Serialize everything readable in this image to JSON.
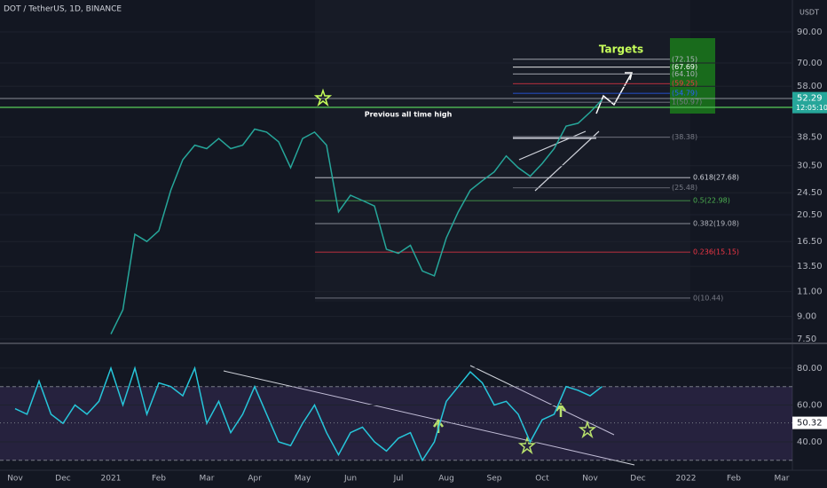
{
  "chart_data": [
    {
      "type": "line",
      "title": "DOT / TetherUS, 1D, BINANCE",
      "currency": "USDT",
      "categories": [
        "Nov",
        null,
        null,
        null,
        "Dec",
        null,
        null,
        null,
        "2021",
        null,
        null,
        null,
        "Feb",
        null,
        null,
        null,
        "Mar",
        null,
        null,
        null,
        "Apr",
        null,
        null,
        null,
        "May",
        null,
        null,
        null,
        "Jun",
        null,
        null,
        null,
        "Jul",
        null,
        null,
        null,
        "Aug",
        null,
        null,
        null,
        "Sep",
        null,
        null,
        null,
        "Oct",
        null,
        null,
        null,
        "Nov",
        null,
        null,
        null,
        "Dec",
        null,
        null,
        null,
        "2022",
        null,
        null,
        null,
        "Feb",
        null,
        null,
        null,
        "Mar",
        null,
        null,
        null
      ],
      "series": [
        {
          "color": "#26a69a",
          "values": [
            null,
            null,
            null,
            null,
            null,
            null,
            null,
            null,
            7.8,
            9.5,
            17.5,
            16.5,
            18,
            25,
            32,
            36,
            35,
            38,
            35,
            36,
            41,
            40,
            37,
            30,
            38,
            40,
            36,
            21,
            24,
            23,
            22,
            15.5,
            15,
            16,
            13,
            12.5,
            17,
            21,
            25,
            27,
            29,
            33,
            30,
            28,
            31,
            35,
            42,
            43,
            47,
            52,
            null,
            null,
            null,
            null,
            null,
            null,
            null,
            null,
            null,
            null,
            null,
            null,
            null,
            null,
            null,
            null,
            null,
            null
          ]
        }
      ],
      "log_scale": true,
      "ylim": [
        7.34,
        116.6
      ],
      "yticks": [
        {
          "value": 7.5,
          "label": "7.50"
        },
        {
          "value": 9,
          "label": "9.00"
        },
        {
          "value": 11,
          "label": "11.00"
        },
        {
          "value": 13.5,
          "label": "13.50"
        },
        {
          "value": 16.5,
          "label": "16.50"
        },
        {
          "value": 20.5,
          "label": "20.50"
        },
        {
          "value": 24.5,
          "label": "24.50"
        },
        {
          "value": 30.5,
          "label": "30.50"
        },
        {
          "value": 38.5,
          "label": "38.50"
        },
        {
          "value": 58,
          "label": "58.00"
        },
        {
          "value": 70,
          "label": "70.00"
        },
        {
          "value": 90,
          "label": "90.00"
        }
      ],
      "last_price": 52.29,
      "countdown": "12:05:10",
      "annotations": [
        "Targets",
        "Previous all time high"
      ],
      "target_levels": [
        {
          "value": 72.15,
          "label": "(72.15)",
          "color": "#b2b5be"
        },
        {
          "value": 67.69,
          "label": "(67.69)",
          "color": "#ffffff"
        },
        {
          "value": 64.1,
          "label": "(64.10)",
          "color": "#b2b5be"
        },
        {
          "value": 59.25,
          "label": "(59.25)",
          "color": "#f23645"
        },
        {
          "value": 54.79,
          "label": "(54.79)",
          "color": "#2962ff"
        },
        {
          "value": 50.97,
          "label": "1(50.97)",
          "color": "#787b86"
        },
        {
          "value": 38.38,
          "label": "(38.38)",
          "color": "#787b86"
        },
        {
          "value": 25.48,
          "label": "(25.48)",
          "color": "#787b86"
        }
      ],
      "fib_levels": [
        {
          "value": 27.68,
          "label": "0.618(27.68)",
          "color": "#d1d4dc"
        },
        {
          "value": 22.98,
          "label": "0.5(22.98)",
          "color": "#4caf50"
        },
        {
          "value": 19.08,
          "label": "0.382(19.08)",
          "color": "#b2b5be"
        },
        {
          "value": 15.15,
          "label": "0.236(15.15)",
          "color": "#f23645"
        },
        {
          "value": 10.44,
          "label": "0(10.44)",
          "color": "#787b86"
        }
      ]
    },
    {
      "type": "line",
      "series": [
        {
          "color": "#26c6da",
          "values": [
            58,
            55,
            73,
            55,
            50,
            60,
            55,
            62,
            80,
            60,
            80,
            55,
            72,
            70,
            65,
            80,
            50,
            62,
            45,
            55,
            70,
            55,
            40,
            38,
            50,
            60,
            45,
            33,
            45,
            48,
            40,
            35,
            42,
            45,
            30,
            40,
            62,
            70,
            78,
            72,
            60,
            62,
            55,
            40,
            52,
            55,
            70,
            68,
            65,
            70,
            null,
            null,
            null,
            null,
            null,
            null,
            null,
            null,
            null,
            null,
            null,
            null,
            null,
            null,
            null,
            null,
            null,
            null
          ]
        }
      ],
      "ylim": [
        24.6,
        92
      ],
      "yticks": [
        {
          "value": 40,
          "label": "40.00"
        },
        {
          "value": 60,
          "label": "60.00"
        },
        {
          "value": 80,
          "label": "80.00"
        }
      ],
      "upper_band": 70,
      "lower_band": 30,
      "last_value": 50.32
    }
  ]
}
